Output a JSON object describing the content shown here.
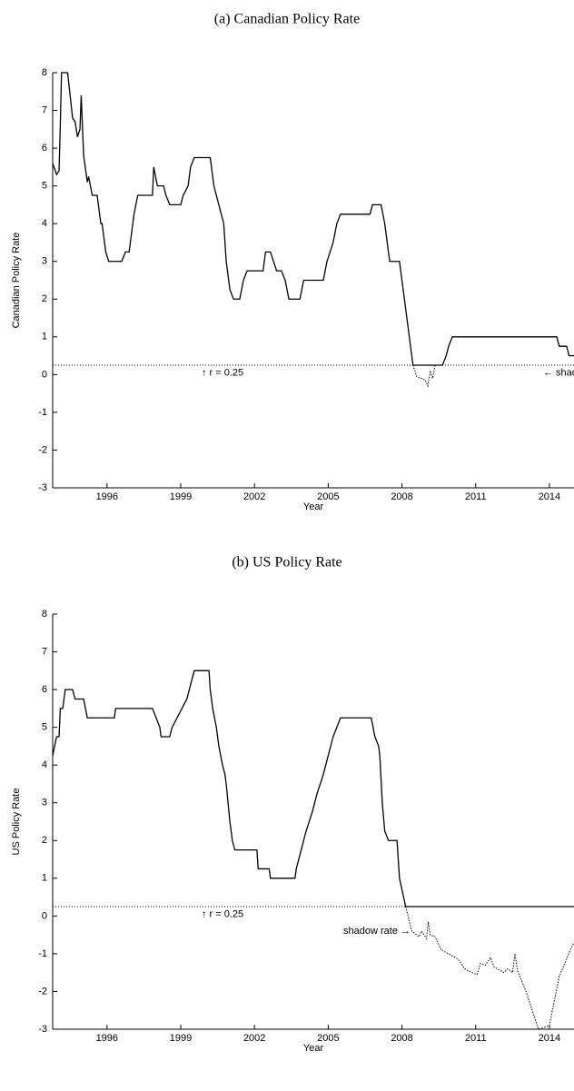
{
  "chart_data": [
    {
      "type": "line",
      "title": "(a) Canadian Policy Rate",
      "xlabel": "Year",
      "ylabel": "Canadian Policy Rate",
      "xlim": [
        1993.79,
        2015.0
      ],
      "ylim": [
        -3,
        8
      ],
      "xticks": [
        1996,
        1999,
        2002,
        2005,
        2008,
        2011,
        2014
      ],
      "yticks": [
        -3,
        -2,
        -1,
        0,
        1,
        2,
        3,
        4,
        5,
        6,
        7,
        8
      ],
      "hline": 0.25,
      "annotations": [
        "↑ r = 0.25",
        "← shadow rate"
      ],
      "series": [
        {
          "color": "#000000",
          "style": "solid",
          "x": [
            1993.79,
            1993.95,
            1994.05,
            1994.1,
            1994.15,
            1994.4,
            1994.6,
            1994.7,
            1994.8,
            1994.9,
            1994.95,
            1995.05,
            1995.2,
            1995.25,
            1995.4,
            1995.6,
            1995.75,
            1995.8,
            1995.95,
            1996.07,
            1996.6,
            1996.75,
            1996.9,
            1997.0,
            1997.1,
            1997.25,
            1997.85,
            1997.9,
            1998.05,
            1998.3,
            1998.4,
            1998.55,
            1999.0,
            1999.1,
            1999.3,
            1999.4,
            1999.55,
            2000.2,
            2000.35,
            2000.55,
            2000.75,
            2000.85,
            2001.0,
            2001.15,
            2001.4,
            2001.55,
            2001.7,
            2002.35,
            2002.45,
            2002.65,
            2002.9,
            2003.1,
            2003.25,
            2003.4,
            2003.85,
            2004.0,
            2004.8,
            2004.95,
            2005.2,
            2005.35,
            2005.5,
            2006.7,
            2006.8,
            2007.15,
            2007.3,
            2007.5,
            2007.9,
            2008.1,
            2008.3,
            2008.45,
            2009.65,
            2009.8,
            2009.9,
            2010.05,
            2014.3,
            2014.4,
            2014.7,
            2014.8,
            2015.0
          ],
          "values": [
            5.6,
            5.3,
            5.4,
            6.6,
            8.0,
            8.0,
            6.8,
            6.7,
            6.3,
            6.5,
            7.4,
            5.8,
            5.1,
            5.25,
            4.75,
            4.75,
            4.0,
            4.0,
            3.25,
            3.0,
            3.0,
            3.25,
            3.25,
            3.75,
            4.25,
            4.75,
            4.75,
            5.5,
            5.0,
            5.0,
            4.75,
            4.5,
            4.5,
            4.75,
            5.0,
            5.5,
            5.75,
            5.75,
            5.0,
            4.5,
            4.0,
            3.0,
            2.25,
            2.0,
            2.0,
            2.5,
            2.75,
            2.75,
            3.25,
            3.25,
            2.75,
            2.75,
            2.5,
            2.0,
            2.0,
            2.5,
            2.5,
            3.0,
            3.5,
            4.0,
            4.25,
            4.25,
            4.5,
            4.5,
            4.0,
            3.0,
            3.0,
            2.0,
            1.0,
            0.25,
            0.25,
            0.5,
            0.75,
            1.0,
            1.0,
            0.75,
            0.75,
            0.5,
            0.5
          ]
        },
        {
          "color": "#000000",
          "style": "dotted",
          "x": [
            2008.45,
            2008.6,
            2008.8,
            2008.95,
            2009.05,
            2009.15,
            2009.25,
            2009.35
          ],
          "values": [
            0.25,
            -0.05,
            -0.1,
            -0.15,
            -0.3,
            0.1,
            -0.1,
            0.25
          ]
        }
      ]
    },
    {
      "type": "line",
      "title": "(b) US Policy Rate",
      "xlabel": "Year",
      "ylabel": "US Policy Rate",
      "xlim": [
        1993.79,
        2015.0
      ],
      "ylim": [
        -3,
        8
      ],
      "xticks": [
        1996,
        1999,
        2002,
        2005,
        2008,
        2011,
        2014
      ],
      "yticks": [
        -3,
        -2,
        -1,
        0,
        1,
        2,
        3,
        4,
        5,
        6,
        7,
        8
      ],
      "hline": 0.25,
      "annotations": [
        "↑ r = 0.25",
        "shadow rate →"
      ],
      "series": [
        {
          "color": "#000000",
          "style": "solid",
          "x": [
            1993.79,
            1993.95,
            1994.05,
            1994.1,
            1994.2,
            1994.3,
            1994.6,
            1994.7,
            1995.05,
            1995.2,
            1996.3,
            1996.35,
            1997.85,
            1998.0,
            1998.15,
            1998.2,
            1998.55,
            1998.65,
            1998.85,
            1999.05,
            1999.25,
            1999.35,
            1999.55,
            2000.15,
            2000.2,
            2000.3,
            2000.45,
            2000.55,
            2000.7,
            2000.8,
            2000.85,
            2001.0,
            2001.1,
            2001.2,
            2002.1,
            2002.15,
            2002.6,
            2002.65,
            2003.65,
            2003.7,
            2003.9,
            2004.1,
            2004.35,
            2004.55,
            2004.8,
            2005.0,
            2005.2,
            2005.5,
            2006.75,
            2006.9,
            2007.05,
            2007.1,
            2007.2,
            2007.3,
            2007.45,
            2007.8,
            2007.9,
            2008.15,
            2015.0
          ],
          "values": [
            4.25,
            4.75,
            4.75,
            5.5,
            5.5,
            6.0,
            6.0,
            5.75,
            5.75,
            5.25,
            5.25,
            5.5,
            5.5,
            5.25,
            5.0,
            4.75,
            4.75,
            5.0,
            5.25,
            5.5,
            5.75,
            6.0,
            6.5,
            6.5,
            6.0,
            5.5,
            5.0,
            4.5,
            4.0,
            3.75,
            3.5,
            2.5,
            2.0,
            1.75,
            1.75,
            1.25,
            1.25,
            1.0,
            1.0,
            1.25,
            1.75,
            2.25,
            2.75,
            3.25,
            3.75,
            4.25,
            4.75,
            5.25,
            5.25,
            4.75,
            4.5,
            4.25,
            3.0,
            2.25,
            2.0,
            2.0,
            1.0,
            0.25,
            0.25
          ]
        },
        {
          "color": "#000000",
          "style": "dotted",
          "x": [
            2008.15,
            2008.4,
            2008.7,
            2008.8,
            2009.0,
            2009.07,
            2009.15,
            2009.35,
            2009.6,
            2009.9,
            2010.3,
            2010.55,
            2010.85,
            2011.05,
            2011.2,
            2011.4,
            2011.6,
            2011.75,
            2012.15,
            2012.3,
            2012.5,
            2012.6,
            2012.7,
            2013.05,
            2013.35,
            2013.55,
            2013.8,
            2014.0,
            2014.15,
            2014.4,
            2014.6,
            2014.85,
            2015.0
          ],
          "values": [
            0.25,
            -0.4,
            -0.55,
            -0.4,
            -0.6,
            -0.15,
            -0.5,
            -0.55,
            -0.9,
            -1.0,
            -1.15,
            -1.4,
            -1.5,
            -1.55,
            -1.25,
            -1.3,
            -1.1,
            -1.35,
            -1.5,
            -1.4,
            -1.5,
            -1.0,
            -1.45,
            -2.0,
            -2.6,
            -3.0,
            -2.95,
            -2.9,
            -2.4,
            -1.6,
            -1.3,
            -0.9,
            -0.7
          ]
        }
      ]
    }
  ]
}
